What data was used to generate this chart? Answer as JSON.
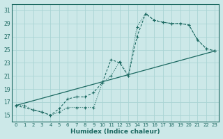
{
  "xlabel": "Humidex (Indice chaleur)",
  "bg_color": "#cce8e8",
  "grid_color": "#aad4d4",
  "line_color": "#1a6860",
  "border_color": "#1a6860",
  "xlim": [
    -0.5,
    23.5
  ],
  "ylim": [
    14.0,
    32.0
  ],
  "xticks": [
    0,
    1,
    2,
    3,
    4,
    5,
    6,
    7,
    8,
    9,
    10,
    11,
    12,
    13,
    14,
    15,
    16,
    17,
    18,
    19,
    20,
    21,
    22,
    23
  ],
  "yticks": [
    15,
    17,
    19,
    21,
    23,
    25,
    27,
    29,
    31
  ],
  "line1_x": [
    0,
    1,
    2,
    3,
    4,
    5,
    6,
    7,
    8,
    9,
    10,
    11,
    12,
    13,
    14,
    15,
    16,
    17,
    18,
    19,
    20,
    21,
    22,
    23
  ],
  "line1_y": [
    16.5,
    16.5,
    15.8,
    15.5,
    15.0,
    15.5,
    16.2,
    16.2,
    16.2,
    16.2,
    20.0,
    21.0,
    23.2,
    21.0,
    28.5,
    30.5,
    29.5,
    29.2,
    29.0,
    29.0,
    28.8,
    26.5,
    25.2,
    24.8
  ],
  "line2_x": [
    0,
    2,
    3,
    4,
    5,
    6,
    7,
    8,
    9,
    10,
    11,
    12,
    13,
    14,
    15,
    16,
    17,
    18,
    19,
    20,
    21,
    22,
    23
  ],
  "line2_y": [
    16.5,
    15.8,
    15.5,
    15.0,
    16.0,
    17.5,
    17.8,
    17.8,
    18.5,
    20.0,
    23.5,
    23.0,
    21.0,
    27.0,
    30.5,
    29.5,
    29.2,
    29.0,
    29.0,
    28.8,
    26.5,
    25.2,
    24.8
  ],
  "line3_x": [
    0,
    23
  ],
  "line3_y": [
    16.5,
    24.8
  ]
}
